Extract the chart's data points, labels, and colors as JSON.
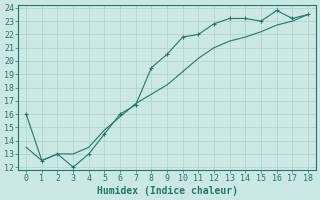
{
  "line1_x": [
    0,
    1,
    2,
    3,
    4,
    5,
    6,
    7,
    8,
    9,
    10,
    11,
    12,
    13,
    14,
    15,
    16,
    17,
    18
  ],
  "line1_y": [
    16.0,
    12.5,
    13.0,
    12.0,
    13.0,
    14.5,
    16.0,
    16.7,
    19.5,
    20.5,
    21.8,
    22.0,
    22.8,
    23.2,
    23.2,
    23.0,
    23.8,
    23.2,
    23.5
  ],
  "line2_x": [
    0,
    1,
    2,
    3,
    4,
    5,
    6,
    7,
    8,
    9,
    10,
    11,
    12,
    13,
    14,
    15,
    16,
    17,
    18
  ],
  "line2_y": [
    13.5,
    12.5,
    13.0,
    13.0,
    13.5,
    14.8,
    15.8,
    16.8,
    17.5,
    18.2,
    19.2,
    20.2,
    21.0,
    21.5,
    21.8,
    22.2,
    22.7,
    23.0,
    23.5
  ],
  "line_color": "#1a7a6e",
  "bg_color": "#cce8e5",
  "grid_color": "#aed0cc",
  "xlabel": "Humidex (Indice chaleur)",
  "ylim": [
    12,
    24
  ],
  "xlim": [
    -0.5,
    18.5
  ],
  "yticks": [
    12,
    13,
    14,
    15,
    16,
    17,
    18,
    19,
    20,
    21,
    22,
    23,
    24
  ],
  "xticks": [
    0,
    1,
    2,
    3,
    4,
    5,
    6,
    7,
    8,
    9,
    10,
    11,
    12,
    13,
    14,
    15,
    16,
    17,
    18
  ],
  "xlabel_fontsize": 7,
  "tick_fontsize": 6
}
